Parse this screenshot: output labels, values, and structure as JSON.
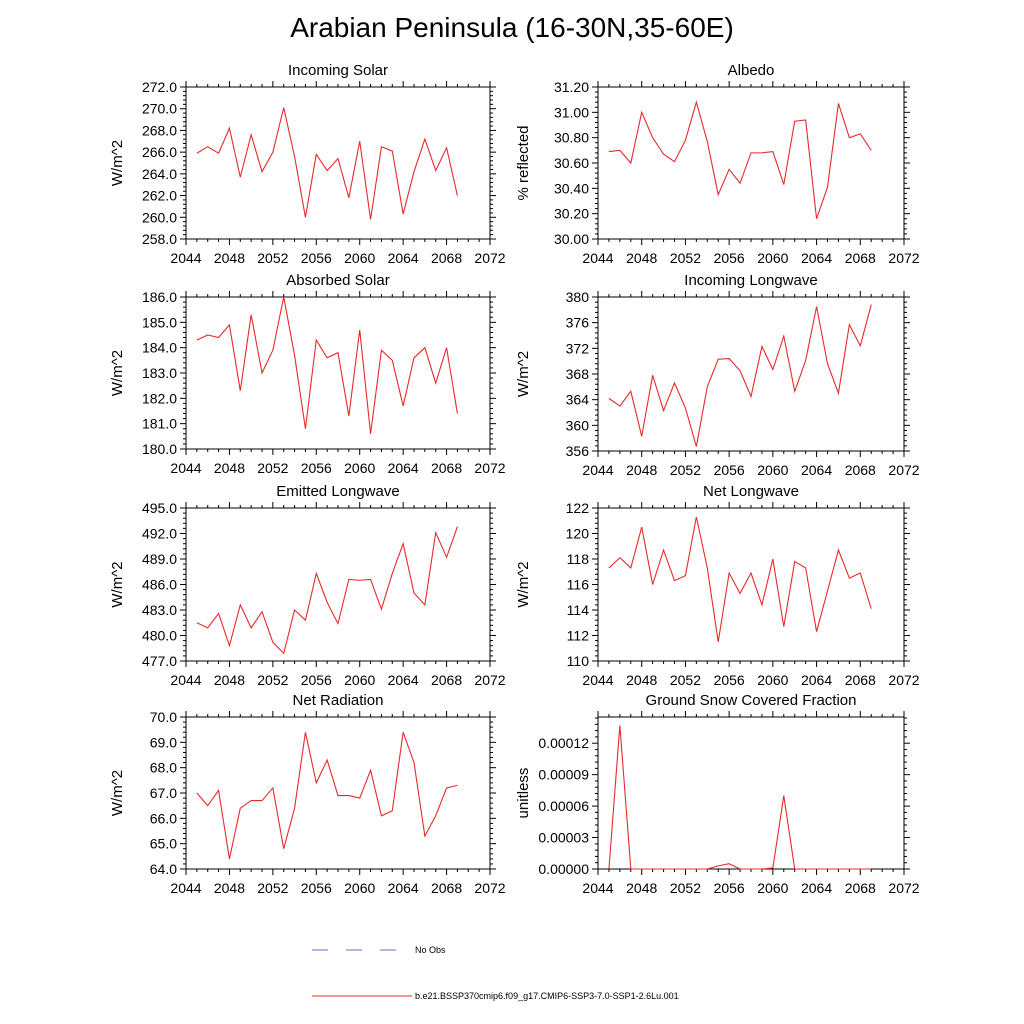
{
  "title": "Arabian Peninsula (16-30N,35-60E)",
  "legend": {
    "obs_label": "No Obs",
    "obs_color": "#6b6bbf",
    "model_label": "b.e21.BSSP370cmip6.f09_g17.CMIP6-SSP3-7.0-SSP1-2.6Lu.001",
    "model_color": "#e8292b"
  },
  "chart_data": [
    {
      "type": "line",
      "title": "Incoming Solar",
      "ylabel": "W/m^2",
      "xlim": [
        2044,
        2072
      ],
      "xticks": [
        2044,
        2048,
        2052,
        2056,
        2060,
        2064,
        2068,
        2072
      ],
      "ylim": [
        258.0,
        272.0
      ],
      "yticks": [
        "258.0",
        "260.0",
        "262.0",
        "264.0",
        "266.0",
        "268.0",
        "270.0",
        "272.0"
      ],
      "x": [
        2045,
        2046,
        2047,
        2048,
        2049,
        2050,
        2051,
        2052,
        2053,
        2054,
        2055,
        2056,
        2057,
        2058,
        2059,
        2060,
        2061,
        2062,
        2063,
        2064,
        2065,
        2066,
        2067,
        2068,
        2069
      ],
      "series": [
        {
          "values": [
            265.9,
            266.5,
            265.9,
            268.2,
            263.7,
            267.6,
            264.2,
            266.0,
            270.1,
            265.6,
            260.0,
            265.8,
            264.3,
            265.4,
            261.8,
            267.0,
            259.8,
            266.5,
            266.1,
            260.3,
            264.2,
            267.2,
            264.3,
            266.4,
            262.0
          ]
        }
      ]
    },
    {
      "type": "line",
      "title": "Albedo",
      "ylabel": "% reflected",
      "xlim": [
        2044,
        2072
      ],
      "xticks": [
        2044,
        2048,
        2052,
        2056,
        2060,
        2064,
        2068,
        2072
      ],
      "ylim": [
        30.0,
        31.2
      ],
      "yticks": [
        "30.00",
        "30.20",
        "30.40",
        "30.60",
        "30.80",
        "31.00",
        "31.20"
      ],
      "x": [
        2045,
        2046,
        2047,
        2048,
        2049,
        2050,
        2051,
        2052,
        2053,
        2054,
        2055,
        2056,
        2057,
        2058,
        2059,
        2060,
        2061,
        2062,
        2063,
        2064,
        2065,
        2066,
        2067,
        2068,
        2069
      ],
      "series": [
        {
          "values": [
            30.69,
            30.7,
            30.6,
            31.0,
            30.8,
            30.67,
            30.61,
            30.78,
            31.08,
            30.77,
            30.35,
            30.55,
            30.44,
            30.68,
            30.68,
            30.69,
            30.43,
            30.93,
            30.94,
            30.16,
            30.41,
            31.07,
            30.8,
            30.83,
            30.7
          ]
        }
      ]
    },
    {
      "type": "line",
      "title": "Absorbed Solar",
      "ylabel": "W/m^2",
      "xlim": [
        2044,
        2072
      ],
      "xticks": [
        2044,
        2048,
        2052,
        2056,
        2060,
        2064,
        2068,
        2072
      ],
      "ylim": [
        180.0,
        186.0
      ],
      "yticks": [
        "180.0",
        "181.0",
        "182.0",
        "183.0",
        "184.0",
        "185.0",
        "186.0"
      ],
      "x": [
        2045,
        2046,
        2047,
        2048,
        2049,
        2050,
        2051,
        2052,
        2053,
        2054,
        2055,
        2056,
        2057,
        2058,
        2059,
        2060,
        2061,
        2062,
        2063,
        2064,
        2065,
        2066,
        2067,
        2068,
        2069
      ],
      "series": [
        {
          "values": [
            184.3,
            184.5,
            184.4,
            184.9,
            182.3,
            185.3,
            183.0,
            183.9,
            186.0,
            183.7,
            180.8,
            184.3,
            183.6,
            183.8,
            181.3,
            184.7,
            180.6,
            183.9,
            183.5,
            181.7,
            183.6,
            184.0,
            182.6,
            184.0,
            181.4
          ]
        }
      ]
    },
    {
      "type": "line",
      "title": "Incoming Longwave",
      "ylabel": "W/m^2",
      "xlim": [
        2044,
        2072
      ],
      "xticks": [
        2044,
        2048,
        2052,
        2056,
        2060,
        2064,
        2068,
        2072
      ],
      "ylim": [
        356,
        380
      ],
      "yticks": [
        "356",
        "360",
        "364",
        "368",
        "372",
        "376",
        "380"
      ],
      "x": [
        2045,
        2046,
        2047,
        2048,
        2049,
        2050,
        2051,
        2052,
        2053,
        2054,
        2055,
        2056,
        2057,
        2058,
        2059,
        2060,
        2061,
        2062,
        2063,
        2064,
        2065,
        2066,
        2067,
        2068,
        2069
      ],
      "series": [
        {
          "values": [
            364.2,
            363.0,
            365.3,
            358.3,
            367.8,
            362.3,
            366.6,
            362.7,
            356.7,
            366.0,
            370.3,
            370.4,
            368.5,
            364.5,
            372.3,
            368.7,
            373.9,
            365.3,
            370.1,
            378.5,
            369.6,
            365.0,
            375.7,
            372.4,
            378.8
          ]
        }
      ]
    },
    {
      "type": "line",
      "title": "Emitted Longwave",
      "ylabel": "W/m^2",
      "xlim": [
        2044,
        2072
      ],
      "xticks": [
        2044,
        2048,
        2052,
        2056,
        2060,
        2064,
        2068,
        2072
      ],
      "ylim": [
        477.0,
        495.0
      ],
      "yticks": [
        "477.0",
        "480.0",
        "483.0",
        "486.0",
        "489.0",
        "492.0",
        "495.0"
      ],
      "x": [
        2045,
        2046,
        2047,
        2048,
        2049,
        2050,
        2051,
        2052,
        2053,
        2054,
        2055,
        2056,
        2057,
        2058,
        2059,
        2060,
        2061,
        2062,
        2063,
        2064,
        2065,
        2066,
        2067,
        2068,
        2069
      ],
      "series": [
        {
          "values": [
            481.5,
            480.9,
            482.6,
            478.8,
            483.6,
            480.9,
            482.8,
            479.2,
            477.9,
            483.0,
            481.8,
            487.3,
            483.9,
            481.4,
            486.6,
            486.5,
            486.6,
            483.1,
            487.3,
            490.8,
            485.0,
            483.6,
            492.1,
            489.2,
            492.8
          ]
        }
      ]
    },
    {
      "type": "line",
      "title": "Net Longwave",
      "ylabel": "W/m^2",
      "xlim": [
        2044,
        2072
      ],
      "xticks": [
        2044,
        2048,
        2052,
        2056,
        2060,
        2064,
        2068,
        2072
      ],
      "ylim": [
        110,
        122
      ],
      "yticks": [
        "110",
        "112",
        "114",
        "116",
        "118",
        "120",
        "122"
      ],
      "x": [
        2045,
        2046,
        2047,
        2048,
        2049,
        2050,
        2051,
        2052,
        2053,
        2054,
        2055,
        2056,
        2057,
        2058,
        2059,
        2060,
        2061,
        2062,
        2063,
        2064,
        2065,
        2066,
        2067,
        2068,
        2069
      ],
      "series": [
        {
          "values": [
            117.3,
            118.1,
            117.3,
            120.5,
            116.0,
            118.7,
            116.3,
            116.7,
            121.3,
            117.3,
            111.5,
            116.9,
            115.3,
            116.9,
            114.4,
            118.0,
            112.7,
            117.8,
            117.3,
            112.3,
            115.5,
            118.7,
            116.5,
            116.9,
            114.1
          ]
        }
      ]
    },
    {
      "type": "line",
      "title": "Net Radiation",
      "ylabel": "W/m^2",
      "xlim": [
        2044,
        2072
      ],
      "xticks": [
        2044,
        2048,
        2052,
        2056,
        2060,
        2064,
        2068,
        2072
      ],
      "ylim": [
        64.0,
        70.0
      ],
      "yticks": [
        "64.0",
        "65.0",
        "66.0",
        "67.0",
        "68.0",
        "69.0",
        "70.0"
      ],
      "x": [
        2045,
        2046,
        2047,
        2048,
        2049,
        2050,
        2051,
        2052,
        2053,
        2054,
        2055,
        2056,
        2057,
        2058,
        2059,
        2060,
        2061,
        2062,
        2063,
        2064,
        2065,
        2066,
        2067,
        2068,
        2069
      ],
      "series": [
        {
          "values": [
            67.0,
            66.5,
            67.1,
            64.4,
            66.4,
            66.7,
            66.7,
            67.2,
            64.8,
            66.4,
            69.4,
            67.4,
            68.3,
            66.9,
            66.9,
            66.8,
            67.9,
            66.1,
            66.3,
            69.4,
            68.2,
            65.3,
            66.1,
            67.2,
            67.3
          ]
        }
      ]
    },
    {
      "type": "line",
      "title": "Ground Snow Covered Fraction",
      "ylabel": "unitless",
      "xlim": [
        2044,
        2072
      ],
      "xticks": [
        2044,
        2048,
        2052,
        2056,
        2060,
        2064,
        2068,
        2072
      ],
      "ylim": [
        0,
        0.000145
      ],
      "yticks": [
        "0.00000",
        "0.00003",
        "0.00006",
        "0.00009",
        "0.00012"
      ],
      "ytick_values": [
        0,
        3e-05,
        6e-05,
        9e-05,
        0.00012
      ],
      "x": [
        2045,
        2046,
        2047,
        2048,
        2049,
        2050,
        2051,
        2052,
        2053,
        2054,
        2055,
        2056,
        2057,
        2058,
        2059,
        2060,
        2061,
        2062,
        2063,
        2064,
        2065,
        2066,
        2067,
        2068,
        2069
      ],
      "series": [
        {
          "values": [
            0,
            0.000137,
            0,
            0,
            0,
            0,
            0,
            0,
            0,
            0,
            3e-06,
            5e-06,
            0,
            0,
            0,
            1e-06,
            7e-05,
            0,
            0,
            0,
            0,
            0,
            0,
            0,
            0
          ]
        }
      ]
    }
  ]
}
